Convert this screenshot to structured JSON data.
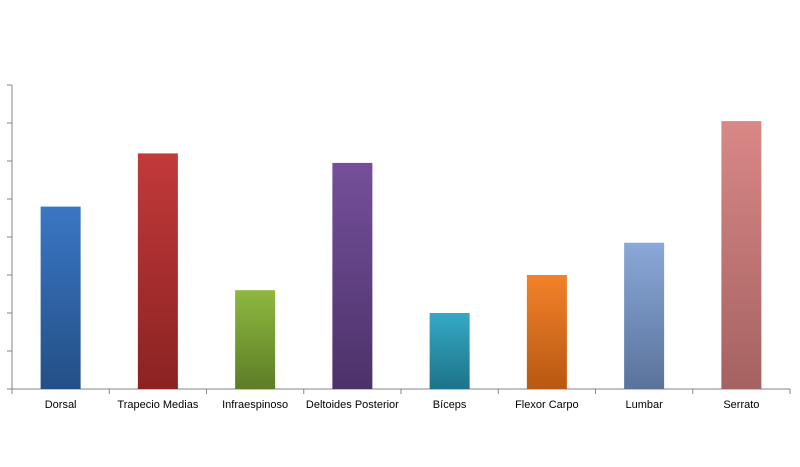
{
  "chart_data": {
    "type": "bar",
    "categories": [
      "Dorsal",
      "Trapecio Medias",
      "Infraespinoso",
      "Deltoides Posterior",
      "Bíceps",
      "Flexor Carpo",
      "Lumbar",
      "Serrato"
    ],
    "values": [
      4.8,
      6.2,
      2.6,
      5.95,
      2.0,
      3.0,
      3.85,
      7.05
    ],
    "ylim": [
      0,
      8
    ],
    "y_ticks": [
      0,
      1,
      2,
      3,
      4,
      5,
      6,
      7,
      8
    ],
    "grid": false,
    "legend": "none",
    "colors": [
      [
        "#3a77c4",
        "#234f86"
      ],
      [
        "#c23a39",
        "#8b2222"
      ],
      [
        "#8db840",
        "#5d7d27"
      ],
      [
        "#754f9b",
        "#4c3269"
      ],
      [
        "#35a9c6",
        "#1e7389"
      ],
      [
        "#f2822a",
        "#b85812"
      ],
      [
        "#8aa8d8",
        "#5a739b"
      ],
      [
        "#d98886",
        "#a46261"
      ]
    ]
  }
}
